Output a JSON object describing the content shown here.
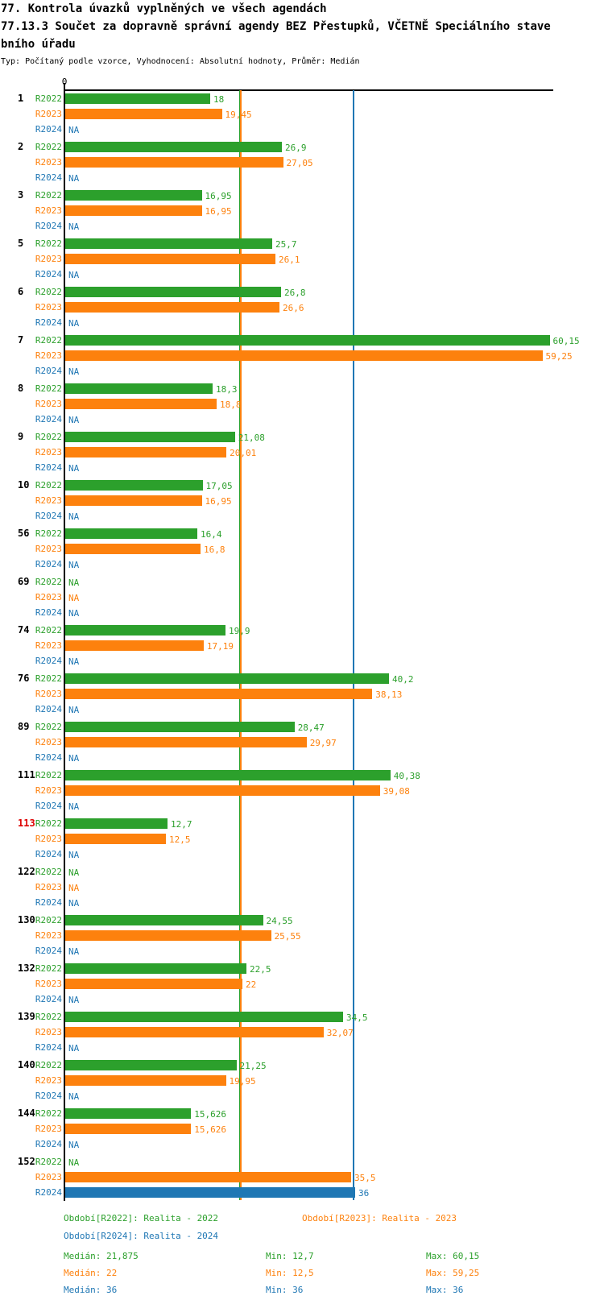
{
  "header": {
    "title_line1": "77. Kontrola úvazků vyplněných ve všech agendách",
    "title_line2": "77.13.3 Součet za dopravně správní agendy BEZ Přestupků, VČETNĚ Speciálního stave",
    "title_line3": "bního úřadu",
    "meta_line": "Typ: Počítaný podle vzorce, Vyhodnocení: Absolutní hodnoty, Průměr: Medián"
  },
  "colors": {
    "green": "#2CA02C",
    "orange": "#FD810D",
    "blue": "#1F77B4",
    "red": "#DD0000",
    "axis": "#000000"
  },
  "axis": {
    "zero_label": "0"
  },
  "chart_data": {
    "type": "bar",
    "orientation": "horizontal",
    "title": "77.13.3 Součet za dopravně správní agendy BEZ Přestupků, VČETNĚ Speciálního stavebního úřadu",
    "xlim": [
      0,
      61
    ],
    "grid": false,
    "na_text": "NA",
    "series": [
      "R2022",
      "R2023",
      "R2024"
    ],
    "series_colors": [
      "green",
      "orange",
      "blue"
    ],
    "groups": [
      {
        "id": "1",
        "highlighted": false,
        "values": [
          18,
          19.45,
          null
        ],
        "display": [
          "18",
          "19,45",
          "NA"
        ]
      },
      {
        "id": "2",
        "highlighted": false,
        "values": [
          26.9,
          27.05,
          null
        ],
        "display": [
          "26,9",
          "27,05",
          "NA"
        ]
      },
      {
        "id": "3",
        "highlighted": false,
        "values": [
          16.95,
          16.95,
          null
        ],
        "display": [
          "16,95",
          "16,95",
          "NA"
        ]
      },
      {
        "id": "5",
        "highlighted": false,
        "values": [
          25.7,
          26.1,
          null
        ],
        "display": [
          "25,7",
          "26,1",
          "NA"
        ]
      },
      {
        "id": "6",
        "highlighted": false,
        "values": [
          26.8,
          26.6,
          null
        ],
        "display": [
          "26,8",
          "26,6",
          "NA"
        ]
      },
      {
        "id": "7",
        "highlighted": false,
        "values": [
          60.15,
          59.25,
          null
        ],
        "display": [
          "60,15",
          "59,25",
          "NA"
        ]
      },
      {
        "id": "8",
        "highlighted": false,
        "values": [
          18.3,
          18.8,
          null
        ],
        "display": [
          "18,3",
          "18,8",
          "NA"
        ]
      },
      {
        "id": "9",
        "highlighted": false,
        "values": [
          21.08,
          20.01,
          null
        ],
        "display": [
          "21,08",
          "20,01",
          "NA"
        ]
      },
      {
        "id": "10",
        "highlighted": false,
        "values": [
          17.05,
          16.95,
          null
        ],
        "display": [
          "17,05",
          "16,95",
          "NA"
        ]
      },
      {
        "id": "56",
        "highlighted": false,
        "values": [
          16.4,
          16.8,
          null
        ],
        "display": [
          "16,4",
          "16,8",
          "NA"
        ]
      },
      {
        "id": "69",
        "highlighted": false,
        "values": [
          null,
          null,
          null
        ],
        "display": [
          "NA",
          "NA",
          "NA"
        ]
      },
      {
        "id": "74",
        "highlighted": false,
        "values": [
          19.9,
          17.19,
          null
        ],
        "display": [
          "19,9",
          "17,19",
          "NA"
        ]
      },
      {
        "id": "76",
        "highlighted": false,
        "values": [
          40.2,
          38.13,
          null
        ],
        "display": [
          "40,2",
          "38,13",
          "NA"
        ]
      },
      {
        "id": "89",
        "highlighted": false,
        "values": [
          28.47,
          29.97,
          null
        ],
        "display": [
          "28,47",
          "29,97",
          "NA"
        ]
      },
      {
        "id": "111",
        "highlighted": false,
        "values": [
          40.38,
          39.08,
          null
        ],
        "display": [
          "40,38",
          "39,08",
          "NA"
        ]
      },
      {
        "id": "113",
        "highlighted": true,
        "values": [
          12.7,
          12.5,
          null
        ],
        "display": [
          "12,7",
          "12,5",
          "NA"
        ]
      },
      {
        "id": "122",
        "highlighted": false,
        "values": [
          null,
          null,
          null
        ],
        "display": [
          "NA",
          "NA",
          "NA"
        ]
      },
      {
        "id": "130",
        "highlighted": false,
        "values": [
          24.55,
          25.55,
          null
        ],
        "display": [
          "24,55",
          "25,55",
          "NA"
        ]
      },
      {
        "id": "132",
        "highlighted": false,
        "values": [
          22.5,
          22,
          null
        ],
        "display": [
          "22,5",
          "22",
          "NA"
        ]
      },
      {
        "id": "139",
        "highlighted": false,
        "values": [
          34.5,
          32.07,
          null
        ],
        "display": [
          "34,5",
          "32,07",
          "NA"
        ]
      },
      {
        "id": "140",
        "highlighted": false,
        "values": [
          21.25,
          19.95,
          null
        ],
        "display": [
          "21,25",
          "19,95",
          "NA"
        ]
      },
      {
        "id": "144",
        "highlighted": false,
        "values": [
          15.626,
          15.626,
          null
        ],
        "display": [
          "15,626",
          "15,626",
          "NA"
        ]
      },
      {
        "id": "152",
        "highlighted": false,
        "values": [
          null,
          35.5,
          36
        ],
        "display": [
          "NA",
          "35,5",
          "36"
        ]
      }
    ],
    "reference_lines": [
      {
        "series": "R2022",
        "value": 21.875,
        "color": "green"
      },
      {
        "series": "R2023",
        "value": 22,
        "color": "orange"
      },
      {
        "series": "R2024",
        "value": 36,
        "color": "blue"
      }
    ]
  },
  "legend": {
    "items": [
      {
        "label": "Období[R2022]: Realita - 2022",
        "color": "green"
      },
      {
        "label": "Období[R2023]: Realita - 2023",
        "color": "orange"
      },
      {
        "label": "Období[R2024]: Realita - 2024",
        "color": "blue"
      }
    ],
    "stats": [
      {
        "color": "green",
        "median": "Medián: 21,875",
        "min": "Min: 12,7",
        "max": "Max: 60,15"
      },
      {
        "color": "orange",
        "median": "Medián: 22",
        "min": "Min: 12,5",
        "max": "Max: 59,25"
      },
      {
        "color": "blue",
        "median": "Medián: 36",
        "min": "Min: 36",
        "max": "Max: 36"
      }
    ]
  }
}
